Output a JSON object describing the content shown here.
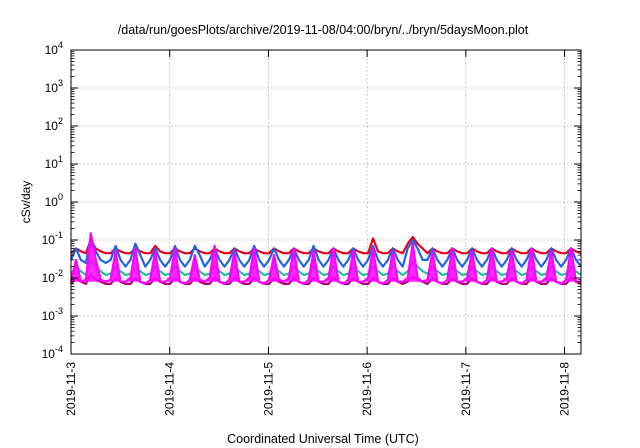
{
  "chart_data": {
    "type": "line",
    "title": "/data/run/goesPlots/archive/2019-11-08/04:00/bryn/../bryn/5daysMoon.plot",
    "xlabel": "Coordinated Universal Time (UTC)",
    "ylabel": "cSv/day",
    "x_scale": "date",
    "xlim": [
      "2019-11-03T00:00",
      "2019-11-08T04:00"
    ],
    "x_ticks": [
      "2019-11-3",
      "2019-11-4",
      "2019-11-5",
      "2019-11-6",
      "2019-11-7",
      "2019-11-8"
    ],
    "y_scale": "log",
    "ylim": [
      0.0001,
      10000
    ],
    "y_ticks": [
      {
        "base": "10",
        "exp": "4"
      },
      {
        "base": "10",
        "exp": "3"
      },
      {
        "base": "10",
        "exp": "2"
      },
      {
        "base": "10",
        "exp": "1"
      },
      {
        "base": "10",
        "exp": "0"
      },
      {
        "base": "10",
        "exp": "-1"
      },
      {
        "base": "10",
        "exp": "-2"
      },
      {
        "base": "10",
        "exp": "-3"
      },
      {
        "base": "10",
        "exp": "-4"
      }
    ],
    "grid": true,
    "legend": "none",
    "series": [
      {
        "color": "#e8001c",
        "baseline": 0.045,
        "values": [
          0.045,
          0.06,
          0.05,
          0.045,
          0.1,
          0.06,
          0.05,
          0.045,
          0.045,
          0.06,
          0.05,
          0.045,
          0.045,
          0.06,
          0.05,
          0.045,
          0.045,
          0.07,
          0.05,
          0.045,
          0.045,
          0.06,
          0.05,
          0.045,
          0.045,
          0.06,
          0.05,
          0.045,
          0.045,
          0.06,
          0.05,
          0.045,
          0.045,
          0.06,
          0.05,
          0.045,
          0.045,
          0.06,
          0.05,
          0.045,
          0.045,
          0.06,
          0.05,
          0.045,
          0.045,
          0.06,
          0.05,
          0.045,
          0.045,
          0.06,
          0.05,
          0.045,
          0.045,
          0.06,
          0.05,
          0.045,
          0.045,
          0.06,
          0.05,
          0.045,
          0.045,
          0.11,
          0.05,
          0.045,
          0.045,
          0.06,
          0.05,
          0.045,
          0.08,
          0.12,
          0.08,
          0.06,
          0.045,
          0.06,
          0.05,
          0.045,
          0.045,
          0.06,
          0.05,
          0.045,
          0.045,
          0.06,
          0.05,
          0.045,
          0.045,
          0.06,
          0.05,
          0.045,
          0.045,
          0.06,
          0.05,
          0.045,
          0.045,
          0.06,
          0.05,
          0.045,
          0.045,
          0.06,
          0.05,
          0.045,
          0.045,
          0.06,
          0.05,
          0.045
        ]
      },
      {
        "color": "#1e64e6",
        "baseline": 0.03,
        "values": [
          0.03,
          0.06,
          0.03,
          0.025,
          0.12,
          0.05,
          0.03,
          0.025,
          0.03,
          0.07,
          0.03,
          0.02,
          0.03,
          0.08,
          0.04,
          0.02,
          0.03,
          0.06,
          0.03,
          0.02,
          0.03,
          0.07,
          0.03,
          0.02,
          0.03,
          0.07,
          0.04,
          0.02,
          0.03,
          0.06,
          0.03,
          0.02,
          0.03,
          0.06,
          0.03,
          0.02,
          0.03,
          0.07,
          0.03,
          0.02,
          0.03,
          0.06,
          0.03,
          0.02,
          0.03,
          0.06,
          0.03,
          0.02,
          0.03,
          0.07,
          0.03,
          0.02,
          0.03,
          0.06,
          0.03,
          0.02,
          0.03,
          0.06,
          0.03,
          0.02,
          0.03,
          0.07,
          0.03,
          0.02,
          0.03,
          0.06,
          0.03,
          0.02,
          0.06,
          0.1,
          0.06,
          0.03,
          0.03,
          0.06,
          0.03,
          0.02,
          0.03,
          0.06,
          0.03,
          0.02,
          0.03,
          0.06,
          0.03,
          0.02,
          0.03,
          0.06,
          0.03,
          0.02,
          0.03,
          0.06,
          0.03,
          0.02,
          0.03,
          0.06,
          0.03,
          0.02,
          0.03,
          0.06,
          0.03,
          0.02,
          0.03,
          0.06,
          0.03,
          0.02
        ]
      },
      {
        "color": "#20c0a0",
        "baseline": 0.013,
        "values": [
          0.013,
          0.02,
          0.015,
          0.012,
          0.03,
          0.02,
          0.015,
          0.012,
          0.013,
          0.02,
          0.015,
          0.012,
          0.013,
          0.02,
          0.015,
          0.012,
          0.013,
          0.02,
          0.015,
          0.012,
          0.013,
          0.02,
          0.015,
          0.012,
          0.013,
          0.02,
          0.015,
          0.012,
          0.013,
          0.02,
          0.015,
          0.012,
          0.013,
          0.02,
          0.015,
          0.012,
          0.013,
          0.02,
          0.015,
          0.012,
          0.013,
          0.02,
          0.015,
          0.012,
          0.013,
          0.02,
          0.015,
          0.012,
          0.013,
          0.02,
          0.015,
          0.012,
          0.013,
          0.02,
          0.015,
          0.012,
          0.013,
          0.02,
          0.015,
          0.012,
          0.013,
          0.02,
          0.015,
          0.012,
          0.013,
          0.02,
          0.015,
          0.012,
          0.015,
          0.025,
          0.02,
          0.015,
          0.013,
          0.02,
          0.015,
          0.012,
          0.013,
          0.02,
          0.015,
          0.012,
          0.013,
          0.02,
          0.015,
          0.012,
          0.013,
          0.02,
          0.015,
          0.012,
          0.013,
          0.02,
          0.015,
          0.012,
          0.013,
          0.02,
          0.015,
          0.012,
          0.013,
          0.02,
          0.015,
          0.012,
          0.013,
          0.02,
          0.015,
          0.012
        ]
      },
      {
        "color": "#b0006e",
        "baseline": 0.007,
        "values": [
          0.007,
          0.01,
          0.008,
          0.007,
          0.012,
          0.009,
          0.008,
          0.007,
          0.007,
          0.01,
          0.008,
          0.007,
          0.007,
          0.01,
          0.008,
          0.007,
          0.007,
          0.01,
          0.008,
          0.007,
          0.007,
          0.01,
          0.008,
          0.007,
          0.007,
          0.01,
          0.008,
          0.007,
          0.007,
          0.01,
          0.008,
          0.007,
          0.007,
          0.01,
          0.008,
          0.007,
          0.007,
          0.01,
          0.008,
          0.007,
          0.007,
          0.01,
          0.008,
          0.007,
          0.007,
          0.01,
          0.008,
          0.007,
          0.007,
          0.01,
          0.008,
          0.007,
          0.007,
          0.01,
          0.008,
          0.007,
          0.007,
          0.01,
          0.008,
          0.007,
          0.007,
          0.01,
          0.008,
          0.007,
          0.007,
          0.01,
          0.008,
          0.007,
          0.008,
          0.011,
          0.009,
          0.008,
          0.007,
          0.01,
          0.008,
          0.007,
          0.007,
          0.01,
          0.008,
          0.007,
          0.007,
          0.01,
          0.008,
          0.007,
          0.007,
          0.01,
          0.008,
          0.007,
          0.007,
          0.01,
          0.008,
          0.007,
          0.007,
          0.01,
          0.008,
          0.007,
          0.007,
          0.01,
          0.008,
          0.007,
          0.007,
          0.01,
          0.008,
          0.007
        ]
      },
      {
        "color": "#ff00ff",
        "baseline": 0.008,
        "spiky": true,
        "values": [
          0.008,
          0.03,
          0.008,
          0.009,
          0.15,
          0.03,
          0.009,
          0.008,
          0.009,
          0.05,
          0.008,
          0.008,
          0.01,
          0.06,
          0.008,
          0.007,
          0.009,
          0.05,
          0.008,
          0.008,
          0.01,
          0.06,
          0.008,
          0.007,
          0.009,
          0.04,
          0.009,
          0.008,
          0.01,
          0.07,
          0.008,
          0.007,
          0.009,
          0.05,
          0.008,
          0.008,
          0.01,
          0.06,
          0.008,
          0.007,
          0.009,
          0.04,
          0.009,
          0.008,
          0.01,
          0.06,
          0.008,
          0.007,
          0.009,
          0.05,
          0.008,
          0.008,
          0.01,
          0.06,
          0.008,
          0.007,
          0.009,
          0.05,
          0.008,
          0.008,
          0.01,
          0.06,
          0.008,
          0.007,
          0.009,
          0.05,
          0.008,
          0.008,
          0.01,
          0.08,
          0.01,
          0.008,
          0.009,
          0.05,
          0.008,
          0.007,
          0.009,
          0.06,
          0.008,
          0.008,
          0.01,
          0.05,
          0.008,
          0.007,
          0.009,
          0.06,
          0.008,
          0.008,
          0.01,
          0.05,
          0.008,
          0.007,
          0.009,
          0.06,
          0.008,
          0.008,
          0.01,
          0.05,
          0.008,
          0.007,
          0.009,
          0.06,
          0.008,
          0.008
        ]
      }
    ]
  }
}
